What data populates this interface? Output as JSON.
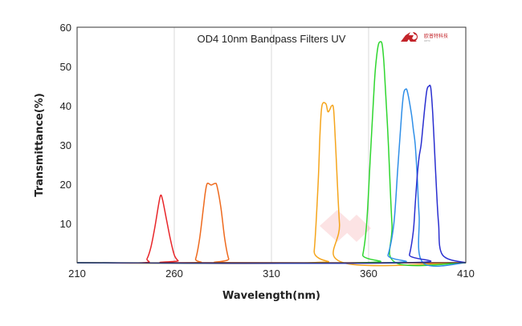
{
  "chart_data": {
    "type": "line",
    "title": "OD4 10nm Bandpass Filters UV",
    "xlabel": "Wavelength(nm)",
    "ylabel": "Transmittance(%)",
    "xlim": [
      210,
      410
    ],
    "ylim": [
      0,
      60
    ],
    "xticks": [
      210,
      260,
      310,
      360,
      410
    ],
    "yticks": [
      10,
      20,
      30,
      40,
      50,
      60
    ],
    "grid": {
      "vertical": true,
      "horizontal": false
    },
    "legend": "none",
    "logo_text": "欧普特科技",
    "logo_subtext": "OPTC",
    "series": [
      {
        "color": "#e8262a",
        "x": [
          210,
          244,
          246,
          248,
          250,
          252,
          253,
          254,
          256,
          258,
          260,
          262,
          264,
          410
        ],
        "y": [
          0,
          0,
          1,
          4,
          9,
          15,
          17.2,
          16,
          11,
          6,
          2,
          0.5,
          0,
          0
        ]
      },
      {
        "color": "#ee6a1e",
        "x": [
          210,
          269,
          271,
          273,
          275,
          276,
          277,
          279,
          281,
          282,
          284,
          286,
          288,
          290,
          410
        ],
        "y": [
          0,
          0,
          1,
          6,
          14,
          18,
          20.2,
          19.8,
          20.2,
          19.5,
          14,
          6,
          1,
          0,
          0
        ],
        "legend": ""
      },
      {
        "color": "#f5a51c",
        "x": [
          210,
          330,
          332,
          334,
          335,
          336,
          338,
          339,
          340,
          341,
          342,
          343,
          345,
          347,
          410
        ],
        "y": [
          0,
          0,
          3,
          20,
          33,
          40,
          40.5,
          38.5,
          39,
          40,
          39,
          30,
          10,
          0,
          0
        ]
      },
      {
        "color": "#2fd62f",
        "x": [
          210,
          355,
          357,
          359,
          361,
          363,
          364,
          365,
          366,
          367,
          368,
          370,
          372,
          374,
          410
        ],
        "y": [
          0,
          0,
          2,
          10,
          28,
          46,
          52,
          55.5,
          56.3,
          55.5,
          50,
          32,
          10,
          0,
          0
        ]
      },
      {
        "color": "#2f8fe8",
        "x": [
          210,
          367,
          370,
          373,
          375,
          377,
          378,
          379,
          380,
          382,
          383,
          384,
          385,
          386,
          388,
          410
        ],
        "y": [
          0,
          0,
          2,
          10,
          24,
          38,
          43,
          44.2,
          43.5,
          38,
          34,
          30,
          22,
          12,
          0,
          0
        ]
      },
      {
        "color": "#2a2fd0",
        "x": [
          210,
          379,
          381,
          383,
          384,
          385,
          386,
          387,
          388,
          389,
          390,
          391,
          392,
          393,
          394,
          395,
          396,
          398,
          410
        ],
        "y": [
          0,
          0,
          2,
          8,
          15,
          22,
          27,
          30,
          35,
          40,
          44,
          45,
          44.5,
          38,
          28,
          18,
          10,
          2,
          0
        ]
      }
    ]
  }
}
